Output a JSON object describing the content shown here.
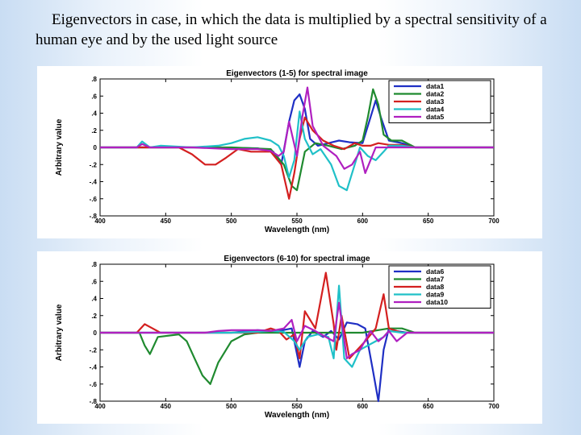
{
  "slide": {
    "caption": "Eigenvectors in case, in which the data is multiplied by a spectral sensitivity of a human eye and by the used light source"
  },
  "chart_data": [
    {
      "type": "line",
      "title": "Eigenvectors (1-5) for spectral image",
      "xlabel": "Wavelength (nm)",
      "ylabel": "Arbitrary value",
      "xlim": [
        400,
        700
      ],
      "ylim": [
        -0.8,
        0.8
      ],
      "xticks": [
        400,
        450,
        500,
        550,
        600,
        650,
        700
      ],
      "yticks": [
        -0.8,
        -0.6,
        -0.4,
        -0.2,
        0,
        0.2,
        0.4,
        0.6,
        0.8
      ],
      "legend_position": "top-right",
      "series": [
        {
          "name": "data1",
          "color": "#1f2fc4",
          "x": [
            400,
            430,
            490,
            520,
            532,
            538,
            544,
            548,
            552,
            556,
            560,
            566,
            574,
            582,
            590,
            600,
            606,
            610,
            614,
            620,
            630,
            640,
            700
          ],
          "y": [
            0,
            0,
            0,
            -0.01,
            -0.05,
            -0.2,
            0.3,
            0.55,
            0.62,
            0.45,
            0.1,
            0.02,
            0.05,
            0.08,
            0.06,
            0.05,
            0.35,
            0.55,
            0.35,
            0.08,
            0.05,
            0,
            0
          ]
        },
        {
          "name": "data2",
          "color": "#1f8a2f",
          "x": [
            400,
            500,
            530,
            540,
            546,
            550,
            556,
            564,
            574,
            584,
            594,
            600,
            604,
            608,
            612,
            616,
            622,
            630,
            640,
            700
          ],
          "y": [
            0,
            0,
            -0.02,
            -0.2,
            -0.45,
            -0.5,
            -0.05,
            0.05,
            0.02,
            -0.02,
            0.02,
            0.08,
            0.35,
            0.68,
            0.5,
            0.15,
            0.08,
            0.08,
            0,
            0
          ]
        },
        {
          "name": "data3",
          "color": "#d42020",
          "x": [
            400,
            460,
            470,
            480,
            488,
            496,
            505,
            515,
            530,
            538,
            544,
            548,
            552,
            556,
            562,
            570,
            578,
            586,
            594,
            600,
            606,
            612,
            620,
            630,
            640,
            700
          ],
          "y": [
            0,
            0,
            -0.08,
            -0.2,
            -0.2,
            -0.12,
            -0.02,
            -0.05,
            -0.05,
            -0.2,
            -0.6,
            -0.3,
            0.1,
            0.35,
            0.2,
            0.08,
            0.02,
            -0.02,
            0.05,
            0.02,
            0.02,
            0.05,
            0.03,
            0.03,
            0,
            0
          ]
        },
        {
          "name": "data4",
          "color": "#20c0c8",
          "x": [
            400,
            428,
            432,
            438,
            446,
            470,
            490,
            500,
            510,
            520,
            530,
            536,
            540,
            544,
            548,
            552,
            556,
            562,
            568,
            576,
            582,
            588,
            594,
            598,
            604,
            610,
            616,
            620,
            630,
            640,
            700
          ],
          "y": [
            0,
            0,
            0.07,
            0,
            0.02,
            0,
            0.02,
            0.05,
            0.1,
            0.12,
            0.08,
            0.02,
            -0.1,
            -0.35,
            -0.15,
            0.42,
            0.1,
            -0.08,
            -0.02,
            -0.2,
            -0.45,
            -0.5,
            -0.2,
            0,
            -0.1,
            -0.15,
            -0.05,
            0.02,
            0.02,
            0,
            0
          ]
        },
        {
          "name": "data5",
          "color": "#b020c0",
          "x": [
            400,
            428,
            432,
            438,
            470,
            500,
            520,
            530,
            536,
            540,
            544,
            550,
            554,
            558,
            562,
            570,
            580,
            586,
            592,
            598,
            602,
            606,
            610,
            620,
            700
          ],
          "y": [
            0,
            0,
            0.04,
            0,
            0,
            -0.02,
            -0.02,
            -0.04,
            -0.1,
            -0.05,
            0.3,
            -0.1,
            0.35,
            0.7,
            0.25,
            0.02,
            -0.1,
            -0.25,
            -0.2,
            -0.05,
            -0.3,
            -0.15,
            0,
            0,
            0
          ]
        }
      ]
    },
    {
      "type": "line",
      "title": "Eigenvectors (6-10) for spectral image",
      "xlabel": "Wavelength (nm)",
      "ylabel": "Arbitrary value",
      "xlim": [
        400,
        700
      ],
      "ylim": [
        -0.8,
        0.8
      ],
      "xticks": [
        400,
        450,
        500,
        550,
        600,
        650,
        700
      ],
      "yticks": [
        -0.8,
        -0.6,
        -0.4,
        -0.2,
        0,
        0.2,
        0.4,
        0.6,
        0.8
      ],
      "legend_position": "top-right",
      "series": [
        {
          "name": "data6",
          "color": "#1f2fc4",
          "x": [
            400,
            500,
            520,
            536,
            546,
            552,
            556,
            562,
            570,
            576,
            582,
            588,
            596,
            602,
            608,
            612,
            616,
            620,
            626,
            634,
            700
          ],
          "y": [
            0,
            0,
            0.03,
            0.02,
            0.05,
            -0.4,
            -0.1,
            0.02,
            -0.05,
            0.02,
            -0.08,
            0.12,
            0.1,
            0.05,
            -0.45,
            -0.8,
            -0.2,
            0.05,
            0.02,
            0,
            0
          ]
        },
        {
          "name": "data7",
          "color": "#1f8a2f",
          "x": [
            400,
            430,
            434,
            438,
            444,
            460,
            466,
            472,
            478,
            484,
            490,
            500,
            510,
            520,
            540,
            560,
            600,
            620,
            630,
            640,
            700
          ],
          "y": [
            0,
            0,
            -0.15,
            -0.25,
            -0.05,
            -0.02,
            -0.1,
            -0.3,
            -0.5,
            -0.6,
            -0.35,
            -0.1,
            -0.02,
            0,
            0,
            0,
            0,
            0.05,
            0.05,
            0,
            0
          ]
        },
        {
          "name": "data8",
          "color": "#d42020",
          "x": [
            400,
            428,
            434,
            440,
            446,
            520,
            530,
            536,
            542,
            548,
            552,
            556,
            564,
            572,
            578,
            580,
            584,
            590,
            596,
            602,
            610,
            616,
            620,
            630,
            700
          ],
          "y": [
            0,
            0,
            0.1,
            0.05,
            0,
            0,
            0.05,
            0.02,
            -0.08,
            -0.02,
            -0.3,
            0.25,
            0.05,
            0.7,
            0.1,
            -0.2,
            0.2,
            -0.3,
            -0.2,
            -0.1,
            0.05,
            0.45,
            0.05,
            0,
            0
          ]
        },
        {
          "name": "data9",
          "color": "#20c0c8",
          "x": [
            400,
            500,
            520,
            530,
            540,
            548,
            552,
            558,
            566,
            574,
            578,
            582,
            586,
            592,
            598,
            604,
            610,
            616,
            620,
            630,
            700
          ],
          "y": [
            0,
            0,
            0.01,
            0.02,
            0.01,
            -0.1,
            -0.2,
            -0.05,
            -0.02,
            -0.05,
            -0.3,
            0.55,
            -0.3,
            -0.4,
            -0.2,
            -0.15,
            -0.1,
            -0.05,
            0.02,
            0,
            0
          ]
        },
        {
          "name": "data10",
          "color": "#b020c0",
          "x": [
            400,
            480,
            490,
            500,
            520,
            530,
            540,
            546,
            550,
            556,
            564,
            572,
            578,
            582,
            588,
            592,
            598,
            606,
            612,
            616,
            620,
            626,
            634,
            700
          ],
          "y": [
            0,
            0,
            0.02,
            0.03,
            0.03,
            0.02,
            0.05,
            0.15,
            -0.1,
            0.08,
            0.02,
            -0.05,
            -0.1,
            0.35,
            -0.3,
            -0.25,
            -0.2,
            0.02,
            -0.1,
            -0.05,
            0.02,
            -0.1,
            0,
            0
          ]
        }
      ]
    }
  ]
}
